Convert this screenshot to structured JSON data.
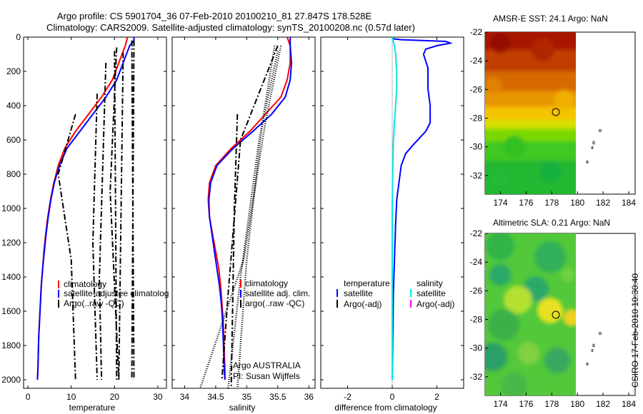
{
  "header": {
    "line1": "Argo profile: CS 5901704_36 07-Feb-2010 20100210_81 27.847S 178.528E",
    "line2": "Climatology: CARS2009. Satellite-adjusted climatology: synTS_20100208.nc (0.57d later)"
  },
  "side_label": "CSIRO 17-Feb-2010 10:30:40",
  "credit": {
    "line1": "Argo AUSTRALIA",
    "line2": "PI: Susan Wijffels"
  },
  "colors": {
    "climatology": "#ff0000",
    "satellite": "#0000ff",
    "argo": "#000000",
    "sat_diff_sal": "#00e5e5",
    "argo_diff_sal": "#ff00ff"
  },
  "chart_data": [
    {
      "type": "line",
      "xlabel": "temperature",
      "ylabel": "",
      "xlim": [
        -1,
        32
      ],
      "ylim": [
        2050,
        0
      ],
      "xticks": [
        "0",
        "10",
        "20",
        "30"
      ],
      "yticks": [
        "0",
        "200",
        "400",
        "600",
        "800",
        "1000",
        "1200",
        "1400",
        "1600",
        "1800",
        "2000"
      ],
      "legend": [
        "climatology",
        "satellite-adjusted climatology",
        "Argo(..raw -QC)"
      ],
      "legend_shown": [
        "climatology",
        "satellite-adjustee climatolog",
        "Argo(..raw -QC)"
      ],
      "series": [
        {
          "name": "climatology",
          "points": [
            [
              23,
              0
            ],
            [
              22.5,
              50
            ],
            [
              21,
              150
            ],
            [
              19.5,
              250
            ],
            [
              17,
              350
            ],
            [
              14,
              450
            ],
            [
              11,
              550
            ],
            [
              8.5,
              650
            ],
            [
              7,
              750
            ],
            [
              6,
              850
            ],
            [
              5.2,
              950
            ],
            [
              4.6,
              1050
            ],
            [
              4.1,
              1150
            ],
            [
              3.7,
              1250
            ],
            [
              3.4,
              1350
            ],
            [
              3.1,
              1450
            ],
            [
              2.9,
              1550
            ],
            [
              2.7,
              1650
            ],
            [
              2.5,
              1750
            ],
            [
              2.4,
              1850
            ],
            [
              2.3,
              1950
            ],
            [
              2.2,
              2000
            ]
          ]
        },
        {
          "name": "satellite-adjusted climatology",
          "points": [
            [
              24.5,
              0
            ],
            [
              24.5,
              20
            ],
            [
              23.5,
              50
            ],
            [
              22,
              150
            ],
            [
              20.5,
              250
            ],
            [
              18,
              350
            ],
            [
              15,
              450
            ],
            [
              12,
              550
            ],
            [
              9,
              650
            ],
            [
              7.3,
              750
            ],
            [
              6.1,
              850
            ],
            [
              5.3,
              950
            ],
            [
              4.7,
              1050
            ],
            [
              4.2,
              1150
            ],
            [
              3.8,
              1250
            ],
            [
              3.4,
              1350
            ],
            [
              3.1,
              1450
            ],
            [
              2.9,
              1550
            ],
            [
              2.7,
              1650
            ],
            [
              2.5,
              1750
            ],
            [
              2.4,
              1850
            ],
            [
              2.3,
              1950
            ],
            [
              2.2,
              2000
            ]
          ]
        },
        {
          "name": "Argo(..raw -QC)",
          "style": "dashdot",
          "segments": [
            [
              [
                11,
                450
              ],
              [
                7,
                800
              ],
              [
                10,
                1300
              ],
              [
                11,
                2000
              ]
            ],
            [
              [
                16,
                330
              ],
              [
                15,
                1200
              ],
              [
                16,
                2000
              ]
            ],
            [
              [
                20.5,
                60
              ],
              [
                19,
                900
              ],
              [
                21,
                2000
              ]
            ],
            [
              [
                20,
                80
              ],
              [
                20.5,
                2000
              ]
            ],
            [
              [
                22,
                90
              ],
              [
                21,
                2000
              ]
            ],
            [
              [
                24,
                20
              ],
              [
                24.5,
                2000
              ]
            ],
            [
              [
                24.5,
                20
              ],
              [
                24,
                2000
              ]
            ],
            [
              [
                18,
                150
              ],
              [
                16.5,
                1400
              ],
              [
                17,
                2000
              ]
            ]
          ]
        }
      ]
    },
    {
      "type": "line",
      "xlabel": "salinity",
      "ylabel": "",
      "xlim": [
        33.8,
        36.1
      ],
      "ylim": [
        2050,
        0
      ],
      "xticks": [
        "34",
        "34.5",
        "35",
        "35.5",
        "36"
      ],
      "legend": [
        "climatology",
        "satellite adj. clim.",
        "argo(..raw -QC)"
      ],
      "series": [
        {
          "name": "climatology",
          "points": [
            [
              35.65,
              0
            ],
            [
              35.7,
              50
            ],
            [
              35.7,
              150
            ],
            [
              35.65,
              250
            ],
            [
              35.55,
              350
            ],
            [
              35.3,
              450
            ],
            [
              35.05,
              550
            ],
            [
              34.75,
              650
            ],
            [
              34.5,
              750
            ],
            [
              34.4,
              850
            ],
            [
              34.38,
              950
            ],
            [
              34.4,
              1050
            ],
            [
              34.45,
              1150
            ],
            [
              34.5,
              1250
            ],
            [
              34.55,
              1350
            ],
            [
              34.58,
              1450
            ],
            [
              34.6,
              1550
            ],
            [
              34.62,
              1650
            ],
            [
              34.63,
              1750
            ],
            [
              34.64,
              1850
            ],
            [
              34.65,
              1950
            ],
            [
              34.65,
              2000
            ]
          ]
        },
        {
          "name": "satellite adj. clim.",
          "points": [
            [
              35.7,
              0
            ],
            [
              35.7,
              50
            ],
            [
              35.72,
              150
            ],
            [
              35.7,
              250
            ],
            [
              35.62,
              350
            ],
            [
              35.4,
              450
            ],
            [
              35.1,
              550
            ],
            [
              34.78,
              650
            ],
            [
              34.52,
              750
            ],
            [
              34.42,
              850
            ],
            [
              34.39,
              950
            ],
            [
              34.4,
              1050
            ],
            [
              34.44,
              1150
            ],
            [
              34.48,
              1250
            ],
            [
              34.52,
              1350
            ],
            [
              34.56,
              1450
            ],
            [
              34.59,
              1550
            ],
            [
              34.61,
              1650
            ],
            [
              34.62,
              1750
            ],
            [
              34.63,
              1850
            ],
            [
              34.64,
              1950
            ],
            [
              34.65,
              2000
            ]
          ]
        },
        {
          "name": "argo(..raw -QC)",
          "style": "dashdot",
          "segments": [
            [
              [
                35.5,
                50
              ],
              [
                34.9,
                600
              ],
              [
                34.7,
                1500
              ],
              [
                34.6,
                2000
              ]
            ],
            [
              [
                34.85,
                450
              ],
              [
                34.8,
                1000
              ],
              [
                34.75,
                2050
              ]
            ]
          ]
        },
        {
          "name": "argo(..raw -QC) dotted",
          "style": "dotted",
          "segments": [
            [
              [
                35.55,
                50
              ],
              [
                35.3,
                500
              ],
              [
                34.95,
                1300
              ],
              [
                34.25,
                2050
              ]
            ],
            [
              [
                35.5,
                80
              ],
              [
                35.2,
                600
              ],
              [
                34.9,
                1400
              ],
              [
                34.7,
                2050
              ]
            ],
            [
              [
                35.45,
                50
              ],
              [
                35.25,
                500
              ],
              [
                35.0,
                1300
              ],
              [
                34.85,
                2050
              ]
            ]
          ]
        }
      ]
    },
    {
      "type": "line",
      "xlabel": "difference from climatology",
      "ylabel": "",
      "xlim": [
        -3.2,
        3.2
      ],
      "ylim": [
        2050,
        0
      ],
      "xticks": [
        "-2",
        "0",
        "2"
      ],
      "legend_groups": [
        {
          "title": "temperature",
          "entries": [
            "satellite",
            "Argo(-adj)"
          ]
        },
        {
          "title": "salinity",
          "entries": [
            "satellite",
            "Argo(-adj)"
          ]
        }
      ],
      "series": [
        {
          "name": "satellite (temperature)",
          "points": [
            [
              0,
              0
            ],
            [
              0.05,
              10
            ],
            [
              0.4,
              15
            ],
            [
              2.4,
              25
            ],
            [
              2.6,
              35
            ],
            [
              2.0,
              50
            ],
            [
              1.5,
              70
            ],
            [
              1.4,
              100
            ],
            [
              1.6,
              180
            ],
            [
              1.6,
              300
            ],
            [
              1.7,
              400
            ],
            [
              1.7,
              500
            ],
            [
              1.5,
              550
            ],
            [
              1.0,
              620
            ],
            [
              0.6,
              680
            ],
            [
              0.4,
              750
            ],
            [
              0.3,
              850
            ],
            [
              0.2,
              950
            ],
            [
              0.15,
              1100
            ],
            [
              0.1,
              1300
            ],
            [
              0.05,
              1500
            ],
            [
              0.02,
              1800
            ],
            [
              0,
              2000
            ]
          ]
        },
        {
          "name": "satellite (salinity)",
          "points": [
            [
              0,
              0
            ],
            [
              0.1,
              50
            ],
            [
              0.15,
              100
            ],
            [
              0.2,
              200
            ],
            [
              0.2,
              300
            ],
            [
              0.15,
              400
            ],
            [
              0.1,
              500
            ],
            [
              0.05,
              600
            ],
            [
              0.02,
              800
            ],
            [
              0,
              1000
            ],
            [
              0,
              2000
            ]
          ]
        }
      ]
    },
    {
      "type": "heatmap",
      "title": "AMSR-E SST: 24.1 Argo: NaN",
      "xlim": [
        172.8,
        184.5
      ],
      "ylim": [
        -33.3,
        -22
      ],
      "xticks": [
        "174",
        "176",
        "178",
        "180",
        "182",
        "184"
      ],
      "yticks": [
        "-22",
        "-24",
        "-26",
        "-28",
        "-30",
        "-32"
      ],
      "marker": {
        "lon": 178.528,
        "lat": -27.847
      },
      "data_extent_lon": [
        172.8,
        180.0
      ]
    },
    {
      "type": "heatmap",
      "title": "Altimetric SLA: 0.21 Argo: NaN",
      "xlim": [
        172.8,
        184.5
      ],
      "ylim": [
        -33.3,
        -22
      ],
      "xticks": [
        "174",
        "176",
        "178",
        "180",
        "182",
        "184"
      ],
      "yticks": [
        "-22",
        "-24",
        "-26",
        "-28",
        "-30",
        "-32"
      ],
      "marker": {
        "lon": 178.528,
        "lat": -27.847
      },
      "data_extent_lon": [
        172.8,
        180.0
      ]
    }
  ]
}
